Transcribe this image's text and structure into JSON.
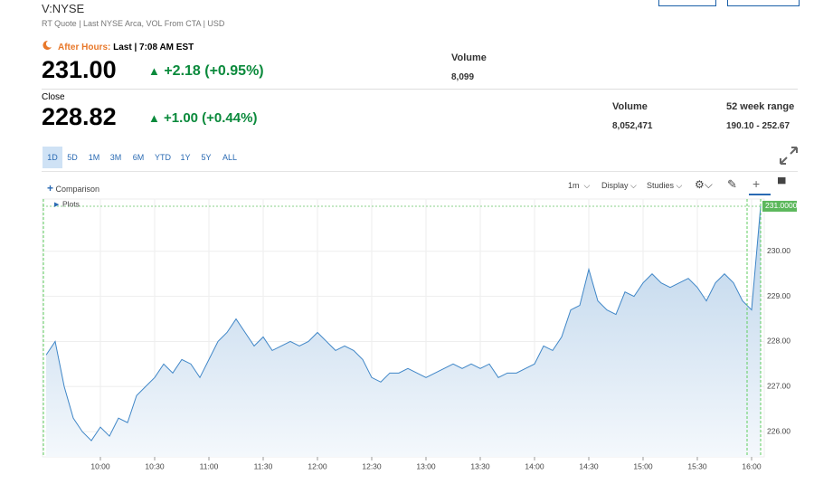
{
  "header": {
    "symbol": "V:NYSE",
    "quote_info": "RT Quote | Last NYSE Arca, VOL From CTA | USD",
    "after_hours_label": "After Hours:",
    "after_hours_time": "Last | 7:08 AM EST",
    "last_price": "231.00",
    "last_change": "+2.18 (+0.95%)",
    "last_volume_label": "Volume",
    "last_volume": "8,099",
    "close_label": "Close",
    "close_price": "228.82",
    "close_change": "+1.00 (+0.44%)",
    "volume_label": "Volume",
    "volume": "8,052,471",
    "range_label": "52 week range",
    "range": "190.10 - 252.67"
  },
  "tabs": [
    "1D",
    "5D",
    "1M",
    "3M",
    "6M",
    "YTD",
    "1Y",
    "5Y",
    "ALL"
  ],
  "toolbar": {
    "comparison": "Comparison",
    "interval": "1m",
    "display": "Display",
    "studies": "Studies",
    "plots": "Plots"
  },
  "chart_data": {
    "type": "area",
    "color": "#3f86c7",
    "price_label": "231.0000",
    "x": [
      "9:30",
      "9:35",
      "9:40",
      "9:45",
      "9:50",
      "9:55",
      "10:00",
      "10:05",
      "10:10",
      "10:15",
      "10:20",
      "10:25",
      "10:30",
      "10:35",
      "10:40",
      "10:45",
      "10:50",
      "10:55",
      "11:00",
      "11:05",
      "11:10",
      "11:15",
      "11:20",
      "11:25",
      "11:30",
      "11:35",
      "11:40",
      "11:45",
      "11:50",
      "11:55",
      "12:00",
      "12:05",
      "12:10",
      "12:15",
      "12:20",
      "12:25",
      "12:30",
      "12:35",
      "12:40",
      "12:45",
      "12:50",
      "12:55",
      "13:00",
      "13:05",
      "13:10",
      "13:15",
      "13:20",
      "13:25",
      "13:30",
      "13:35",
      "13:40",
      "13:45",
      "13:50",
      "13:55",
      "14:00",
      "14:05",
      "14:10",
      "14:15",
      "14:20",
      "14:25",
      "14:30",
      "14:35",
      "14:40",
      "14:45",
      "14:50",
      "14:55",
      "15:00",
      "15:05",
      "15:10",
      "15:15",
      "15:20",
      "15:25",
      "15:30",
      "15:35",
      "15:40",
      "15:45",
      "15:50",
      "15:55",
      "16:00",
      "16:05"
    ],
    "values": [
      227.7,
      228.0,
      227.0,
      226.3,
      226.0,
      225.8,
      226.1,
      225.9,
      226.3,
      226.2,
      226.8,
      227.0,
      227.2,
      227.5,
      227.3,
      227.6,
      227.5,
      227.2,
      227.6,
      228.0,
      228.2,
      228.5,
      228.2,
      227.9,
      228.1,
      227.8,
      227.9,
      228.0,
      227.9,
      228.0,
      228.2,
      228.0,
      227.8,
      227.9,
      227.8,
      227.6,
      227.2,
      227.1,
      227.3,
      227.3,
      227.4,
      227.3,
      227.2,
      227.3,
      227.4,
      227.5,
      227.4,
      227.5,
      227.4,
      227.5,
      227.2,
      227.3,
      227.3,
      227.4,
      227.5,
      227.9,
      227.8,
      228.1,
      228.7,
      228.8,
      229.6,
      228.9,
      228.7,
      228.6,
      229.1,
      229.0,
      229.3,
      229.5,
      229.3,
      229.2,
      229.3,
      229.4,
      229.2,
      228.9,
      229.3,
      229.5,
      229.3,
      228.9,
      228.7,
      231.0
    ],
    "ylim": [
      225.44,
      231.16
    ],
    "yticks": [
      {
        "value": 226,
        "label": "226.00"
      },
      {
        "value": 227,
        "label": "227.00"
      },
      {
        "value": 228,
        "label": "228.00"
      },
      {
        "value": 229,
        "label": "229.00"
      },
      {
        "value": 230,
        "label": "230.00"
      }
    ],
    "xticks": [
      "10:00",
      "10:30",
      "11:00",
      "11:30",
      "12:00",
      "12:30",
      "13:00",
      "13:30",
      "14:00",
      "14:30",
      "15:00",
      "15:30",
      "16:00"
    ]
  }
}
